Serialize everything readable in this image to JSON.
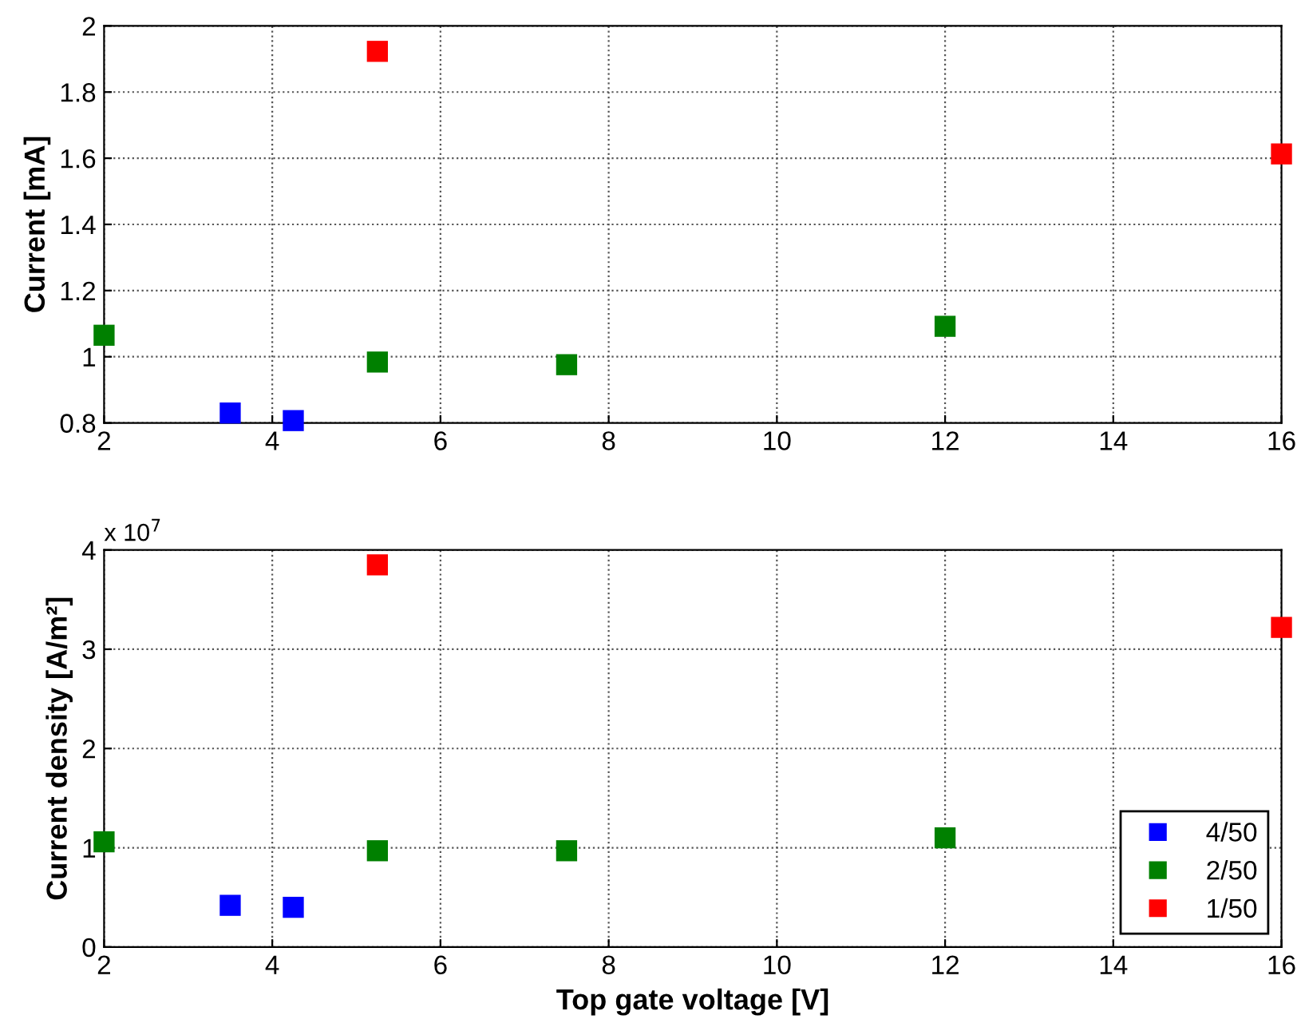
{
  "chart_data": [
    {
      "type": "scatter",
      "ylabel": "Current [mA]",
      "xlim": [
        2,
        16
      ],
      "xticks": [
        2,
        4,
        6,
        8,
        10,
        12,
        14,
        16
      ],
      "ylim": [
        0.8,
        2
      ],
      "yticks": [
        0.8,
        1,
        1.2,
        1.4,
        1.6,
        1.8,
        2
      ],
      "grid": true,
      "marker": "square",
      "legend": false,
      "series": [
        {
          "color": "#0000ff",
          "x": [
            3.5,
            4.25
          ],
          "values": [
            0.83,
            0.807
          ]
        },
        {
          "color": "#008000",
          "x": [
            2,
            5.25,
            7.5,
            12
          ],
          "values": [
            1.065,
            0.984,
            0.976,
            1.092
          ]
        },
        {
          "color": "#ff0000",
          "x": [
            5.25,
            16
          ],
          "values": [
            1.923,
            1.613
          ]
        }
      ]
    },
    {
      "type": "scatter",
      "xlabel": "Top gate voltage [V]",
      "ylabel": "Current density [A/m²]",
      "xlim": [
        2,
        16
      ],
      "xticks": [
        2,
        4,
        6,
        8,
        10,
        12,
        14,
        16
      ],
      "ylim": [
        0,
        4
      ],
      "yticks": [
        0,
        1,
        2,
        3,
        4
      ],
      "annotations": [
        "x 10$^{7}$"
      ],
      "grid": true,
      "marker": "square",
      "legend": "bottom right",
      "series": [
        {
          "name": "4/50",
          "color": "#0000ff",
          "x": [
            3.5,
            4.25
          ],
          "values": [
            0.42,
            0.4
          ]
        },
        {
          "name": "2/50",
          "color": "#008000",
          "x": [
            2,
            5.25,
            7.5,
            12
          ],
          "values": [
            1.06,
            0.97,
            0.97,
            1.1
          ]
        },
        {
          "name": "1/50",
          "color": "#ff0000",
          "x": [
            5.25,
            16
          ],
          "values": [
            3.85,
            3.22
          ]
        }
      ]
    }
  ]
}
